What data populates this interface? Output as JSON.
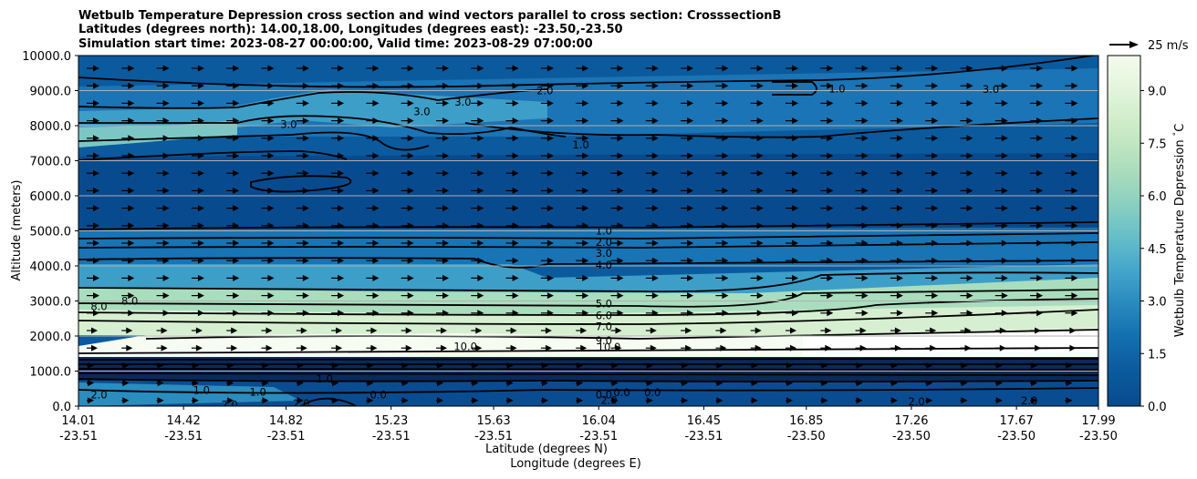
{
  "chart_data": {
    "type": "contour",
    "title": [
      "Wetbulb Temperature Depression cross section and wind vectors parallel to cross section: CrosssectionB",
      "Latitudes (degrees north): 14.00,18.00, Longitudes (degrees east): -23.50,-23.50",
      "Simulation start time: 2023-08-27 00:00:00, Valid time: 2023-08-29 07:00:00"
    ],
    "xlabel_lines": [
      "Latitude (degrees N)",
      "Longitude (degrees E)"
    ],
    "ylabel": "Altitude (meters)",
    "ylim": [
      0,
      10000
    ],
    "xlim": [
      14.01,
      17.99
    ],
    "y_ticks": [
      "0.0",
      "1000.0",
      "2000.0",
      "3000.0",
      "4000.0",
      "5000.0",
      "6000.0",
      "7000.0",
      "8000.0",
      "9000.0",
      "10000.0"
    ],
    "y_tick_values": [
      0,
      1000,
      2000,
      3000,
      4000,
      5000,
      6000,
      7000,
      8000,
      9000,
      10000
    ],
    "x_ticks": [
      {
        "lat": "14.01",
        "lon": "-23.51",
        "value": 14.01
      },
      {
        "lat": "14.42",
        "lon": "-23.51",
        "value": 14.42
      },
      {
        "lat": "14.82",
        "lon": "-23.51",
        "value": 14.82
      },
      {
        "lat": "15.23",
        "lon": "-23.51",
        "value": 15.23
      },
      {
        "lat": "15.63",
        "lon": "-23.51",
        "value": 15.63
      },
      {
        "lat": "16.04",
        "lon": "-23.51",
        "value": 16.04
      },
      {
        "lat": "16.45",
        "lon": "-23.51",
        "value": 16.45
      },
      {
        "lat": "16.85",
        "lon": "-23.50",
        "value": 16.85
      },
      {
        "lat": "17.26",
        "lon": "-23.50",
        "value": 17.26
      },
      {
        "lat": "17.67",
        "lon": "-23.50",
        "value": 17.67
      },
      {
        "lat": "17.99",
        "lon": "-23.50",
        "value": 17.99
      }
    ],
    "colorbar": {
      "label": "Wetbulb Temperature Depression $^\\circ$C",
      "range": [
        0,
        10
      ],
      "ticks": [
        "0.0",
        "1.5",
        "3.0",
        "4.5",
        "6.0",
        "7.5",
        "9.0"
      ],
      "tick_values": [
        0,
        1.5,
        3.0,
        4.5,
        6.0,
        7.5,
        9.0
      ],
      "colormap": "GnBu_r",
      "low_color": "#084a8e",
      "high_color": "#f4fbed"
    },
    "wind_key": {
      "label": "25 m/s",
      "speed": 25
    },
    "grid": "horizontal",
    "contour_labels": [
      {
        "text": "1.0",
        "x": 16.06,
        "y": 5000
      },
      {
        "text": "2.0",
        "x": 16.06,
        "y": 4680
      },
      {
        "text": "3.0",
        "x": 16.06,
        "y": 4360
      },
      {
        "text": "4.0",
        "x": 16.06,
        "y": 4030
      },
      {
        "text": "5.0",
        "x": 16.06,
        "y": 2920
      },
      {
        "text": "6.0",
        "x": 16.06,
        "y": 2580
      },
      {
        "text": "7.0",
        "x": 16.06,
        "y": 2270
      },
      {
        "text": "9.0",
        "x": 16.06,
        "y": 1870
      },
      {
        "text": "10.0",
        "x": 16.08,
        "y": 1690
      },
      {
        "text": "3.0",
        "x": 14.83,
        "y": 8040
      },
      {
        "text": "3.0",
        "x": 15.35,
        "y": 8400
      },
      {
        "text": "3.0",
        "x": 15.51,
        "y": 8670
      },
      {
        "text": "2.0",
        "x": 15.83,
        "y": 9000
      },
      {
        "text": "1.0",
        "x": 15.97,
        "y": 7450
      },
      {
        "text": "1.0",
        "x": 16.97,
        "y": 9050
      },
      {
        "text": "3.0",
        "x": 17.57,
        "y": 9040
      },
      {
        "text": "8.0",
        "x": 14.09,
        "y": 2850
      },
      {
        "text": "8.0",
        "x": 14.21,
        "y": 3000
      },
      {
        "text": "1.0",
        "x": 14.49,
        "y": 460
      },
      {
        "text": "2.0",
        "x": 14.6,
        "y": 40
      },
      {
        "text": "1.0",
        "x": 14.71,
        "y": 400
      },
      {
        "text": "2.0",
        "x": 14.88,
        "y": 80
      },
      {
        "text": "1.0",
        "x": 14.97,
        "y": 780
      },
      {
        "text": "0.0",
        "x": 15.18,
        "y": 320
      },
      {
        "text": "0.0",
        "x": 16.13,
        "y": 390
      },
      {
        "text": "0.0",
        "x": 16.06,
        "y": 330
      },
      {
        "text": "0.0",
        "x": 16.25,
        "y": 390
      },
      {
        "text": "2.0",
        "x": 16.08,
        "y": 170
      },
      {
        "text": "2.0",
        "x": 17.28,
        "y": 130
      },
      {
        "text": "2.0",
        "x": 17.72,
        "y": 150
      },
      {
        "text": "2.0",
        "x": 14.09,
        "y": 320
      },
      {
        "text": "10.0",
        "x": 15.52,
        "y": 1700
      }
    ]
  }
}
